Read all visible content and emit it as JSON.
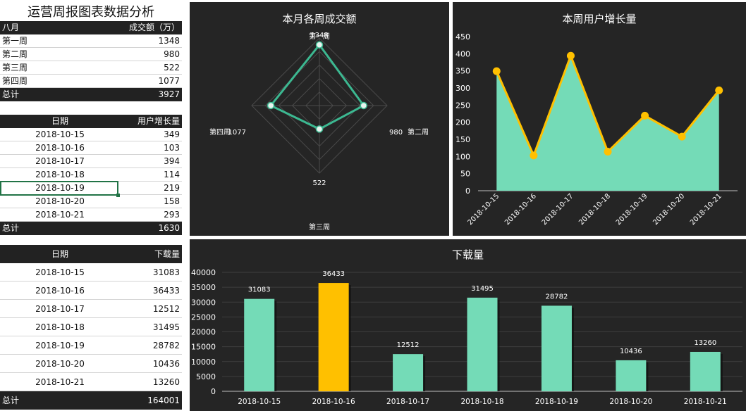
{
  "sheet_title": "运营周报图表数据分析",
  "table1": {
    "headers": [
      "八月",
      "成交额（万）"
    ],
    "rows": [
      [
        "第一周",
        "1348"
      ],
      [
        "第二周",
        "980"
      ],
      [
        "第三周",
        "522"
      ],
      [
        "第四周",
        "1077"
      ]
    ],
    "total": [
      "总计",
      "3927"
    ]
  },
  "table2": {
    "headers": [
      "日期",
      "用户增长量"
    ],
    "rows": [
      [
        "2018-10-15",
        "349"
      ],
      [
        "2018-10-16",
        "103"
      ],
      [
        "2018-10-17",
        "394"
      ],
      [
        "2018-10-18",
        "114"
      ],
      [
        "2018-10-19",
        "219"
      ],
      [
        "2018-10-20",
        "158"
      ],
      [
        "2018-10-21",
        "293"
      ]
    ],
    "total": [
      "总计",
      "1630"
    ]
  },
  "table3": {
    "headers": [
      "日期",
      "下载量"
    ],
    "rows": [
      [
        "2018-10-15",
        "31083"
      ],
      [
        "2018-10-16",
        "36433"
      ],
      [
        "2018-10-17",
        "12512"
      ],
      [
        "2018-10-18",
        "31495"
      ],
      [
        "2018-10-19",
        "28782"
      ],
      [
        "2018-10-20",
        "10436"
      ],
      [
        "2018-10-21",
        "13260"
      ]
    ],
    "total": [
      "总计",
      "164001"
    ]
  },
  "colors": {
    "panel_bg": "#252525",
    "teal": "#74dbb7",
    "radar_line": "#3cb891",
    "gold": "#ffc000",
    "dark_row": "#222222",
    "selection": "#217346"
  },
  "chart_data": [
    {
      "type": "radar",
      "title": "本月各周成交额",
      "categories": [
        "第一周",
        "第二周",
        "第三周",
        "第四周"
      ],
      "values": [
        1348,
        980,
        522,
        1077
      ],
      "rmax": 1500,
      "grid_rings": 5
    },
    {
      "type": "area",
      "title": "本周用户增长量",
      "categories": [
        "2018-10-15",
        "2018-10-16",
        "2018-10-17",
        "2018-10-18",
        "2018-10-19",
        "2018-10-20",
        "2018-10-21"
      ],
      "values": [
        349,
        103,
        394,
        114,
        219,
        158,
        293
      ],
      "ylim": [
        0,
        450
      ],
      "yticks": [
        0,
        50,
        100,
        150,
        200,
        250,
        300,
        350,
        400,
        450
      ]
    },
    {
      "type": "bar",
      "title": "下载量",
      "categories": [
        "2018-10-15",
        "2018-10-16",
        "2018-10-17",
        "2018-10-18",
        "2018-10-19",
        "2018-10-20",
        "2018-10-21"
      ],
      "values": [
        31083,
        36433,
        12512,
        31495,
        28782,
        10436,
        13260
      ],
      "highlight_index": 1,
      "ylim": [
        0,
        40000
      ],
      "yticks": [
        0,
        5000,
        10000,
        15000,
        20000,
        25000,
        30000,
        35000,
        40000
      ]
    }
  ]
}
